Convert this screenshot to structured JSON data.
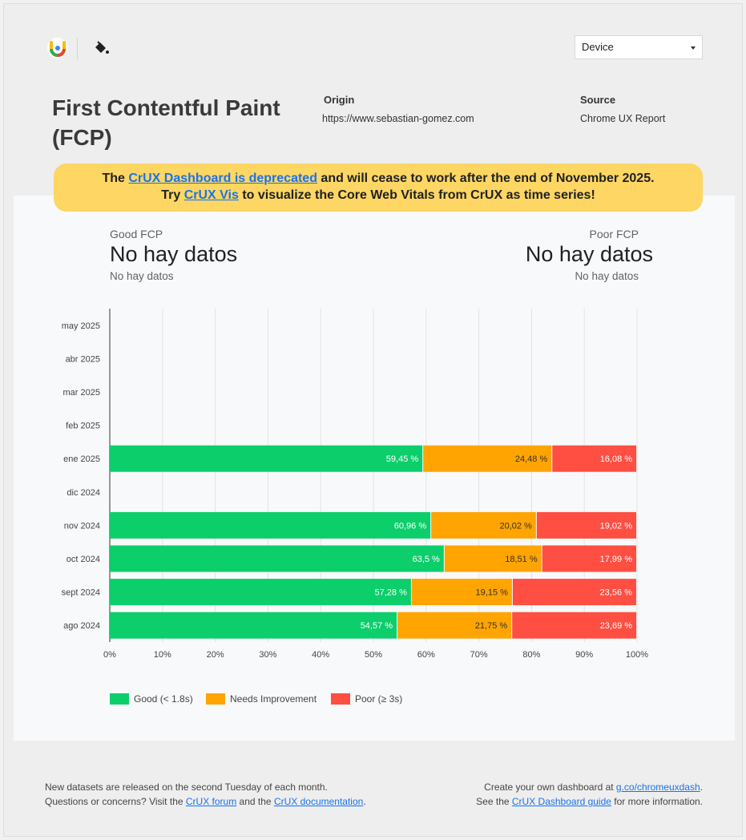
{
  "header": {
    "title": "First Contentful Paint (FCP)",
    "device_select": "Device",
    "origin_label": "Origin",
    "origin_value": "https://www.sebastian-gomez.com",
    "source_label": "Source",
    "source_value": "Chrome UX Report"
  },
  "banner": {
    "l1_pre": "The ",
    "l1_link": "CrUX Dashboard is deprecated",
    "l1_post": " and will cease to work after the end of November 2025.",
    "l2_pre": "Try ",
    "l2_link": "CrUX Vis",
    "l2_post": " to visualize the Core Web Vitals from CrUX as time series!"
  },
  "scorecards": {
    "good_label": "Good FCP",
    "good_value": "No hay datos",
    "good_sub": "No hay datos",
    "poor_label": "Poor FCP",
    "poor_value": "No hay datos",
    "poor_sub": "No hay datos"
  },
  "chart_data": {
    "type": "bar",
    "orientation": "horizontal",
    "stacked": true,
    "categories": [
      "may 2025",
      "abr 2025",
      "mar 2025",
      "feb 2025",
      "ene 2025",
      "dic 2024",
      "nov 2024",
      "oct 2024",
      "sept 2024",
      "ago 2024"
    ],
    "series": [
      {
        "name": "Good (< 1.8s)",
        "color": "#0cce6b",
        "values": [
          null,
          null,
          null,
          null,
          59.45,
          null,
          60.96,
          63.5,
          57.28,
          54.57
        ],
        "labels": [
          "",
          "",
          "",
          "",
          "59,45 %",
          "",
          "60,96 %",
          "63,5 %",
          "57,28 %",
          "54,57 %"
        ]
      },
      {
        "name": "Needs Improvement",
        "color": "#ffa400",
        "values": [
          null,
          null,
          null,
          null,
          24.48,
          null,
          20.02,
          18.51,
          19.15,
          21.75
        ],
        "labels": [
          "",
          "",
          "",
          "",
          "24,48 %",
          "",
          "20,02 %",
          "18,51 %",
          "19,15 %",
          "21,75 %"
        ]
      },
      {
        "name": "Poor (≥ 3s)",
        "color": "#ff4e42",
        "values": [
          null,
          null,
          null,
          null,
          16.08,
          null,
          19.02,
          17.99,
          23.56,
          23.69
        ],
        "labels": [
          "",
          "",
          "",
          "",
          "16,08 %",
          "",
          "19,02 %",
          "17,99 %",
          "23,56 %",
          "23,69 %"
        ]
      }
    ],
    "xlim": [
      0,
      100
    ],
    "xticks": [
      "0%",
      "10%",
      "20%",
      "30%",
      "40%",
      "50%",
      "60%",
      "70%",
      "80%",
      "90%",
      "100%"
    ],
    "grid": true,
    "legend_position": "bottom-left"
  },
  "footer": {
    "left_l1": "New datasets are released on the second Tuesday of each month.",
    "left_l2_a": "Questions or concerns? Visit the ",
    "left_l2_link1": "CrUX forum",
    "left_l2_b": " and the ",
    "left_l2_link2": "CrUX documentation",
    "left_l2_c": ".",
    "right_l1_a": "Create your own dashboard at ",
    "right_l1_link": "g.co/chromeuxdash",
    "right_l1_b": ".",
    "right_l2_a": "See the ",
    "right_l2_link": "CrUX Dashboard guide",
    "right_l2_b": " for more information."
  },
  "icons": {
    "logo": "looker-studio-logo-icon",
    "theme": "paint-bucket-icon",
    "caret": "caret-down-icon"
  }
}
